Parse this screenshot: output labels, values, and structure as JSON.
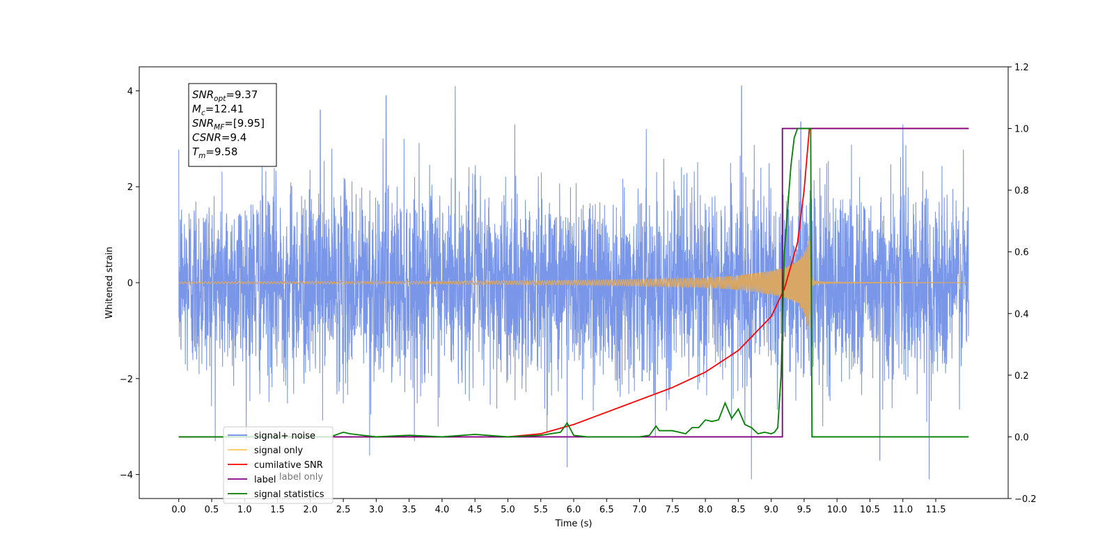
{
  "chart_data": {
    "type": "line",
    "xlabel": "Time (s)",
    "ylabel": "Whitened strain",
    "xlim": [
      -0.6,
      12.6
    ],
    "ylim": [
      -4.5,
      4.5
    ],
    "ylim_right": [
      -0.2,
      1.2
    ],
    "x_ticks": [
      0.0,
      0.5,
      1.0,
      1.5,
      2.0,
      2.5,
      3.0,
      3.5,
      4.0,
      4.5,
      5.0,
      5.5,
      6.0,
      6.5,
      7.0,
      7.5,
      8.0,
      8.5,
      9.0,
      9.5,
      10.0,
      10.5,
      11.0,
      11.5
    ],
    "x_tick_labels": [
      "0.0",
      "0.5",
      "1.0",
      "1.5",
      "2.0",
      "2.5",
      "3.0",
      "3.5",
      "4.0",
      "4.5",
      "5.0",
      "5.5",
      "6.0",
      "6.5",
      "7.0",
      "7.5",
      "8.0",
      "8.5",
      "9.0",
      "9.5",
      "10.0",
      "10.5",
      "11.0",
      "11.5"
    ],
    "y_ticks_left": [
      -4,
      -2,
      0,
      2,
      4
    ],
    "y_tick_labels_left": [
      "−4",
      "−2",
      "0",
      "2",
      "4"
    ],
    "y_ticks_right": [
      -0.2,
      0.0,
      0.2,
      0.4,
      0.6,
      0.8,
      1.0,
      1.2
    ],
    "y_tick_labels_right": [
      "−0.2",
      "0.0",
      "0.2",
      "0.4",
      "0.6",
      "0.8",
      "1.0",
      "1.2"
    ],
    "grid": false,
    "legend_placement": "lower-left",
    "legend": [
      {
        "label": "signal+ noise",
        "color": "#6688e6"
      },
      {
        "label": "signal only",
        "color": "#ffc45a"
      },
      {
        "label": "cumilative SNR",
        "color": "#ff0000"
      },
      {
        "label": "label",
        "color": "#800080"
      },
      {
        "label": "signal statistics",
        "color": "#008000"
      }
    ],
    "hidden_legend_text": "label only",
    "annotation": [
      {
        "main": "SNR",
        "sub": "opt",
        "value": "=9.37"
      },
      {
        "main": "M",
        "sub": "c",
        "value": "=12.41"
      },
      {
        "main": "SNR",
        "sub": "MF",
        "value": "=[9.95]"
      },
      {
        "main": "CSNR",
        "sub": "",
        "value": "=9.4"
      },
      {
        "main": "T",
        "sub": "m",
        "value": "=9.58"
      }
    ],
    "series": [
      {
        "name": "signal+ noise",
        "axis": "left",
        "color": "#6688e6",
        "kind": "noise",
        "x_range": [
          0.0,
          12.0
        ],
        "amplitude_std": 1.0,
        "peaks": [
          [
            4.2,
            4.1
          ],
          [
            8.55,
            4.1
          ],
          [
            3.15,
            3.9
          ],
          [
            2.15,
            3.6
          ],
          [
            9.45,
            3.35
          ],
          [
            11.0,
            3.3
          ],
          [
            5.9,
            -3.85
          ],
          [
            8.7,
            -4.1
          ],
          [
            11.4,
            -4.1
          ],
          [
            2.9,
            -3.6
          ],
          [
            10.65,
            -3.7
          ]
        ]
      },
      {
        "name": "signal only",
        "axis": "left",
        "color": "#ffc45a",
        "kind": "chirp",
        "merger_time": 9.58,
        "envelope": {
          "x": [
            0.0,
            4.0,
            6.0,
            7.0,
            8.0,
            8.5,
            9.0,
            9.2,
            9.4,
            9.5,
            9.55,
            9.58,
            9.62,
            9.7,
            10.0,
            12.0
          ],
          "y": [
            0.02,
            0.03,
            0.05,
            0.07,
            0.1,
            0.15,
            0.25,
            0.32,
            0.45,
            0.65,
            0.9,
            1.0,
            0.06,
            0.02,
            0.01,
            0.0
          ]
        }
      },
      {
        "name": "cumilative SNR",
        "axis": "right",
        "color": "#ff0000",
        "x": [
          0.0,
          5.0,
          5.5,
          6.0,
          6.5,
          7.0,
          7.5,
          8.0,
          8.5,
          9.0,
          9.2,
          9.4,
          9.5,
          9.58,
          9.6,
          12.0
        ],
        "y": [
          0.0,
          0.0,
          0.01,
          0.04,
          0.08,
          0.12,
          0.16,
          0.21,
          0.28,
          0.39,
          0.48,
          0.63,
          0.8,
          1.0,
          1.0,
          1.0
        ]
      },
      {
        "name": "label",
        "axis": "right",
        "color": "#800080",
        "x": [
          0.0,
          9.17,
          9.17,
          9.65,
          9.65,
          12.0
        ],
        "y": [
          0.0,
          0.0,
          1.0,
          1.0,
          1.0,
          1.0
        ]
      },
      {
        "name": "signal statistics",
        "axis": "right",
        "color": "#008000",
        "x": [
          0.0,
          2.3,
          2.5,
          2.6,
          2.8,
          3.0,
          3.5,
          4.0,
          4.5,
          5.0,
          5.5,
          5.8,
          5.9,
          6.0,
          6.2,
          7.0,
          7.15,
          7.25,
          7.3,
          7.5,
          7.6,
          7.7,
          7.8,
          7.9,
          8.0,
          8.1,
          8.2,
          8.3,
          8.4,
          8.5,
          8.6,
          8.7,
          8.8,
          8.9,
          9.0,
          9.05,
          9.1,
          9.15,
          9.2,
          9.3,
          9.35,
          9.4,
          9.5,
          9.55,
          9.6,
          9.62,
          9.65,
          12.0
        ],
        "y": [
          0.0,
          0.0,
          0.015,
          0.01,
          0.005,
          0.0,
          0.005,
          0.0,
          0.008,
          0.0,
          0.005,
          0.015,
          0.045,
          0.005,
          0.0,
          0.0,
          0.005,
          0.035,
          0.02,
          0.02,
          0.015,
          0.01,
          0.03,
          0.03,
          0.055,
          0.05,
          0.055,
          0.11,
          0.06,
          0.09,
          0.04,
          0.03,
          0.01,
          0.015,
          0.01,
          0.015,
          0.03,
          0.2,
          0.6,
          0.88,
          0.97,
          1.0,
          1.0,
          1.0,
          1.0,
          0.0,
          0.0,
          0.0
        ]
      }
    ]
  }
}
